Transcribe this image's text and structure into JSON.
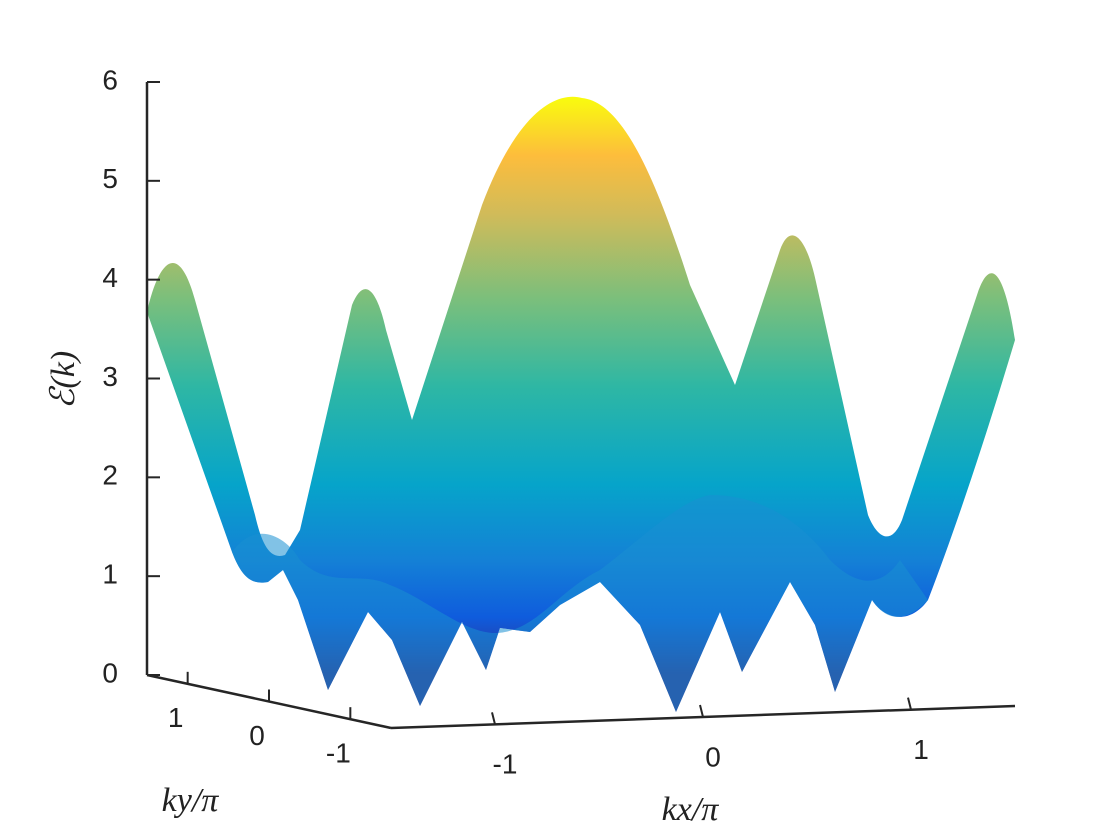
{
  "chart_data": {
    "type": "surface",
    "xlabel": "kx/π",
    "ylabel": "ky/π",
    "zlabel": "ℰ(k)",
    "xlim": [
      -1.5,
      1.5
    ],
    "xticks": [
      -1,
      0,
      1
    ],
    "ylim": [
      -1.5,
      1.5
    ],
    "yticks": [
      -1,
      0,
      1
    ],
    "zlim": [
      0,
      6
    ],
    "zticks": [
      0,
      1,
      2,
      3,
      4,
      5,
      6
    ],
    "colormap": "parula"
  }
}
